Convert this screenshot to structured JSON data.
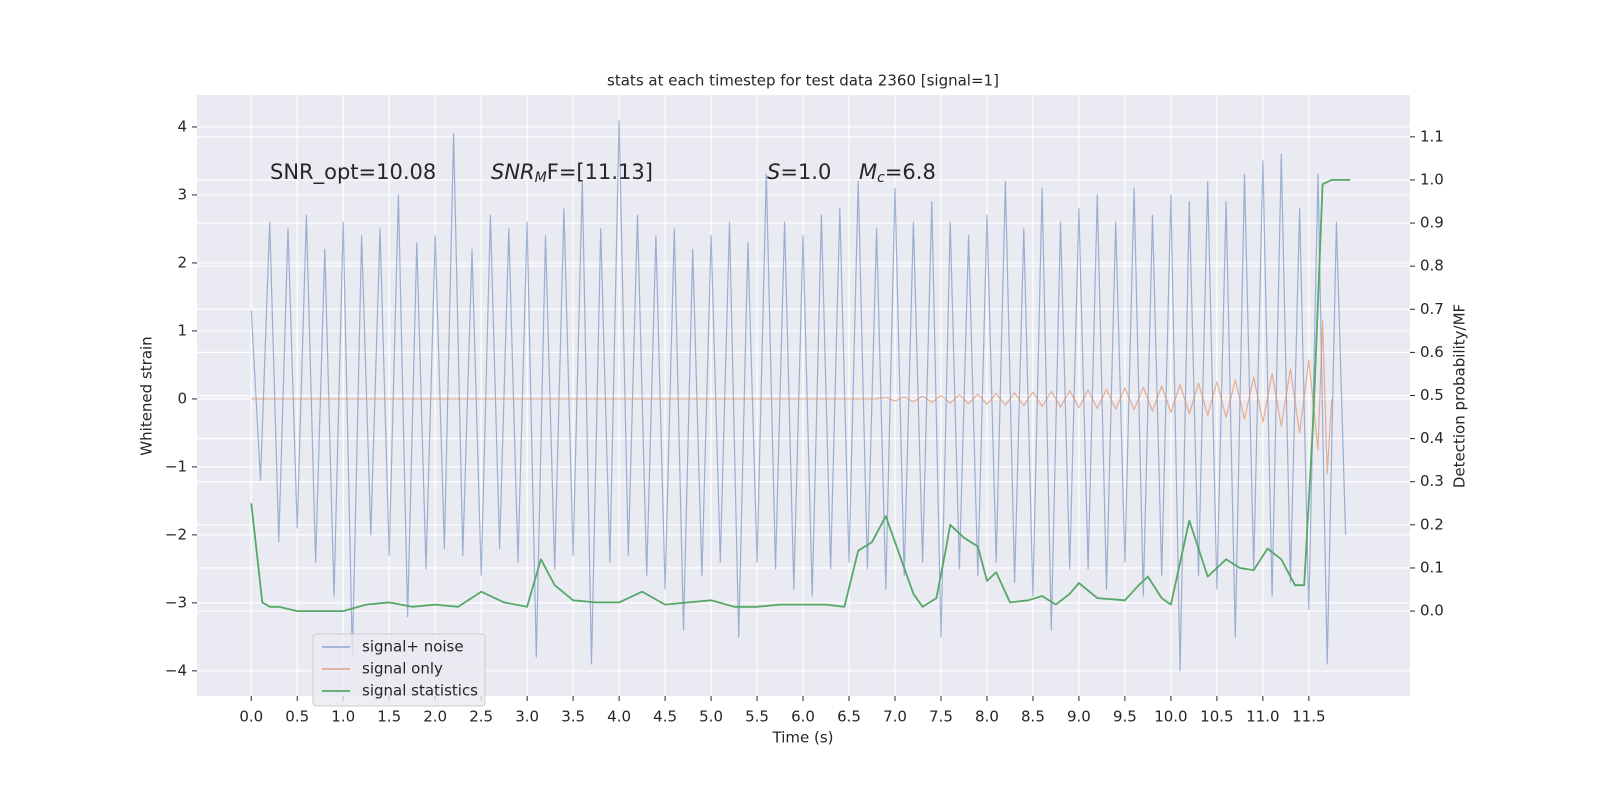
{
  "chart_data": {
    "type": "line",
    "title": "stats at each timestep for test data 2360 [signal=1]",
    "xlabel": "Time (s)",
    "ylabel": "Whitened strain",
    "y2label": "Detection probability/MF",
    "xlim": [
      -0.59,
      12.6
    ],
    "ylim": [
      -4.37,
      4.47
    ],
    "y2lim": [
      -0.197,
      1.197
    ],
    "xticks": [
      {
        "value": 0,
        "label": "0.0"
      },
      {
        "value": 0.5,
        "label": "0.5"
      },
      {
        "value": 1,
        "label": "1.0"
      },
      {
        "value": 1.5,
        "label": "1.5"
      },
      {
        "value": 2,
        "label": "2.0"
      },
      {
        "value": 2.5,
        "label": "2.5"
      },
      {
        "value": 3,
        "label": "3.0"
      },
      {
        "value": 3.5,
        "label": "3.5"
      },
      {
        "value": 4,
        "label": "4.0"
      },
      {
        "value": 4.5,
        "label": "4.5"
      },
      {
        "value": 5,
        "label": "5.0"
      },
      {
        "value": 5.5,
        "label": "5.5"
      },
      {
        "value": 6,
        "label": "6.0"
      },
      {
        "value": 6.5,
        "label": "6.5"
      },
      {
        "value": 7,
        "label": "7.0"
      },
      {
        "value": 7.5,
        "label": "7.5"
      },
      {
        "value": 8,
        "label": "8.0"
      },
      {
        "value": 8.5,
        "label": "8.5"
      },
      {
        "value": 9,
        "label": "9.0"
      },
      {
        "value": 9.5,
        "label": "9.5"
      },
      {
        "value": 10,
        "label": "10.0"
      },
      {
        "value": 10.5,
        "label": "10.5"
      },
      {
        "value": 11,
        "label": "11.0"
      },
      {
        "value": 11.5,
        "label": "11.5"
      }
    ],
    "yticks": [
      {
        "value": -4,
        "label": "−4"
      },
      {
        "value": -3,
        "label": "−3"
      },
      {
        "value": -2,
        "label": "−2"
      },
      {
        "value": -1,
        "label": "−1"
      },
      0,
      1,
      2,
      3,
      4
    ],
    "y2ticks": [
      {
        "value": 0,
        "label": "0.0"
      },
      {
        "value": 0.1,
        "label": "0.1"
      },
      {
        "value": 0.2,
        "label": "0.2"
      },
      {
        "value": 0.3,
        "label": "0.3"
      },
      {
        "value": 0.4,
        "label": "0.4"
      },
      {
        "value": 0.5,
        "label": "0.5"
      },
      {
        "value": 0.6,
        "label": "0.6"
      },
      {
        "value": 0.7,
        "label": "0.7"
      },
      {
        "value": 0.8,
        "label": "0.8"
      },
      {
        "value": 0.9,
        "label": "0.9"
      },
      {
        "value": 1,
        "label": "1.0"
      },
      {
        "value": 1.1,
        "label": "1.1"
      }
    ],
    "grid": true,
    "legend": "lower left",
    "annotations": [
      {
        "main": "SNR_opt=10.08"
      },
      {
        "main": "SNR",
        "sub": "M",
        "rest": "F=[11.13]"
      },
      {
        "main": "S",
        "rest": "=1.0"
      },
      {
        "main": "M",
        "sub": "c",
        "rest": "=6.8"
      }
    ],
    "series": [
      {
        "name": "signal+ noise",
        "color": "#4c72b0",
        "x": [
          0,
          0.1,
          0.2,
          0.3,
          0.4,
          0.5,
          0.6,
          0.7,
          0.8,
          0.9,
          1,
          1.1,
          1.2,
          1.3,
          1.4,
          1.5,
          1.6,
          1.7,
          1.8,
          1.9,
          2,
          2.1,
          2.2,
          2.3,
          2.4,
          2.5,
          2.6,
          2.7,
          2.8,
          2.9,
          3,
          3.1,
          3.2,
          3.3,
          3.4,
          3.5,
          3.6,
          3.7,
          3.8,
          3.9,
          4,
          4.1,
          4.2,
          4.3,
          4.4,
          4.5,
          4.6,
          4.7,
          4.8,
          4.9,
          5,
          5.1,
          5.2,
          5.3,
          5.4,
          5.5,
          5.6,
          5.7,
          5.8,
          5.9,
          6,
          6.1,
          6.2,
          6.3,
          6.4,
          6.5,
          6.6,
          6.7,
          6.8,
          6.9,
          7,
          7.1,
          7.2,
          7.3,
          7.4,
          7.5,
          7.6,
          7.7,
          7.8,
          7.9,
          8,
          8.1,
          8.2,
          8.3,
          8.4,
          8.5,
          8.6,
          8.7,
          8.8,
          8.9,
          9,
          9.1,
          9.2,
          9.3,
          9.4,
          9.5,
          9.6,
          9.7,
          9.8,
          9.9,
          10,
          10.1,
          10.2,
          10.3,
          10.4,
          10.5,
          10.6,
          10.7,
          10.8,
          10.9,
          11,
          11.1,
          11.2,
          11.3,
          11.4,
          11.5,
          11.6,
          11.7,
          11.8,
          11.9
        ],
        "values": [
          1.3,
          -1.2,
          2.6,
          -2.1,
          2.5,
          -1.9,
          2.7,
          -2.4,
          2.2,
          -2.9,
          2.6,
          -3.8,
          2.4,
          -2.0,
          2.5,
          -2.3,
          3.0,
          -3.2,
          2.3,
          -2.5,
          2.4,
          -2.2,
          3.9,
          -2.3,
          2.2,
          -2.6,
          2.7,
          -2.2,
          2.5,
          -2.4,
          2.6,
          -3.8,
          2.4,
          -2.5,
          2.8,
          -2.3,
          3.2,
          -3.9,
          2.5,
          -2.4,
          4.1,
          -2.3,
          2.7,
          -2.6,
          2.4,
          -2.8,
          2.5,
          -3.4,
          2.2,
          -2.6,
          2.4,
          -2.4,
          2.6,
          -3.5,
          2.3,
          -2.4,
          3.3,
          -2.5,
          2.6,
          -2.8,
          2.4,
          -2.9,
          2.7,
          -2.5,
          2.8,
          -2.4,
          3.2,
          -2.5,
          2.5,
          -2.8,
          3.1,
          -2.6,
          2.6,
          -2.4,
          2.9,
          -3.5,
          2.6,
          -2.5,
          2.4,
          -2.6,
          2.7,
          -2.4,
          3.2,
          -2.7,
          2.5,
          -2.9,
          3.1,
          -3.4,
          2.6,
          -2.5,
          2.8,
          -2.5,
          3.0,
          -2.8,
          2.6,
          -2.4,
          3.1,
          -2.9,
          2.7,
          -2.6,
          3.0,
          -4.0,
          2.9,
          -2.6,
          3.2,
          -2.8,
          2.9,
          -3.5,
          3.3,
          -2.5,
          3.5,
          -2.9,
          3.6,
          -2.7,
          2.8,
          -3.1,
          3.3,
          -3.9,
          2.6,
          -2.0
        ]
      },
      {
        "name": "signal only",
        "color": "#dd8452",
        "x": [
          0,
          6.8,
          6.9,
          7,
          7.1,
          7.2,
          7.3,
          7.4,
          7.5,
          7.6,
          7.7,
          7.8,
          7.9,
          8,
          8.1,
          8.2,
          8.3,
          8.4,
          8.5,
          8.6,
          8.7,
          8.8,
          8.9,
          9,
          9.1,
          9.2,
          9.3,
          9.4,
          9.5,
          9.6,
          9.7,
          9.8,
          9.9,
          10,
          10.1,
          10.2,
          10.3,
          10.4,
          10.5,
          10.6,
          10.7,
          10.8,
          10.9,
          11,
          11.1,
          11.2,
          11.3,
          11.4,
          11.5,
          11.6,
          11.65,
          11.7,
          11.75
        ],
        "values": [
          0,
          0,
          0.02,
          -0.03,
          0.03,
          -0.04,
          0.04,
          -0.05,
          0.05,
          -0.06,
          0.06,
          -0.07,
          0.07,
          -0.08,
          0.08,
          -0.09,
          0.09,
          -0.1,
          0.1,
          -0.11,
          0.11,
          -0.12,
          0.12,
          -0.13,
          0.13,
          -0.14,
          0.14,
          -0.15,
          0.16,
          -0.16,
          0.17,
          -0.18,
          0.19,
          -0.2,
          0.21,
          -0.22,
          0.23,
          -0.24,
          0.25,
          -0.27,
          0.28,
          -0.3,
          0.32,
          -0.34,
          0.37,
          -0.4,
          0.44,
          -0.5,
          0.57,
          -0.75,
          1.15,
          -1.1,
          0
        ]
      },
      {
        "name": "signal statistics",
        "color": "#55a868",
        "axis": "y2",
        "x": [
          0,
          0.12,
          0.2,
          0.3,
          0.5,
          0.75,
          1,
          1.25,
          1.5,
          1.75,
          2,
          2.25,
          2.5,
          2.75,
          3,
          3.15,
          3.3,
          3.5,
          3.75,
          4,
          4.25,
          4.5,
          4.75,
          5,
          5.25,
          5.5,
          5.75,
          6,
          6.25,
          6.45,
          6.6,
          6.75,
          6.9,
          7,
          7.2,
          7.3,
          7.45,
          7.55,
          7.6,
          7.75,
          7.9,
          8,
          8.1,
          8.25,
          8.45,
          8.6,
          8.75,
          8.9,
          9,
          9.2,
          9.5,
          9.65,
          9.75,
          9.9,
          10,
          10.2,
          10.4,
          10.6,
          10.75,
          10.9,
          11.05,
          11.2,
          11.35,
          11.45,
          11.55,
          11.65,
          11.75,
          11.95
        ],
        "values": [
          0.25,
          0.02,
          0.01,
          0.01,
          0,
          0,
          0,
          0.015,
          0.02,
          0.01,
          0.015,
          0.01,
          0.045,
          0.02,
          0.01,
          0.12,
          0.06,
          0.025,
          0.02,
          0.02,
          0.045,
          0.015,
          0.02,
          0.025,
          0.01,
          0.01,
          0.015,
          0.015,
          0.015,
          0.01,
          0.14,
          0.16,
          0.22,
          0.16,
          0.04,
          0.01,
          0.03,
          0.14,
          0.2,
          0.17,
          0.15,
          0.07,
          0.09,
          0.02,
          0.025,
          0.035,
          0.015,
          0.04,
          0.065,
          0.03,
          0.025,
          0.06,
          0.08,
          0.03,
          0.015,
          0.21,
          0.08,
          0.12,
          0.1,
          0.095,
          0.145,
          0.12,
          0.06,
          0.06,
          0.45,
          0.99,
          1,
          1
        ]
      }
    ]
  }
}
